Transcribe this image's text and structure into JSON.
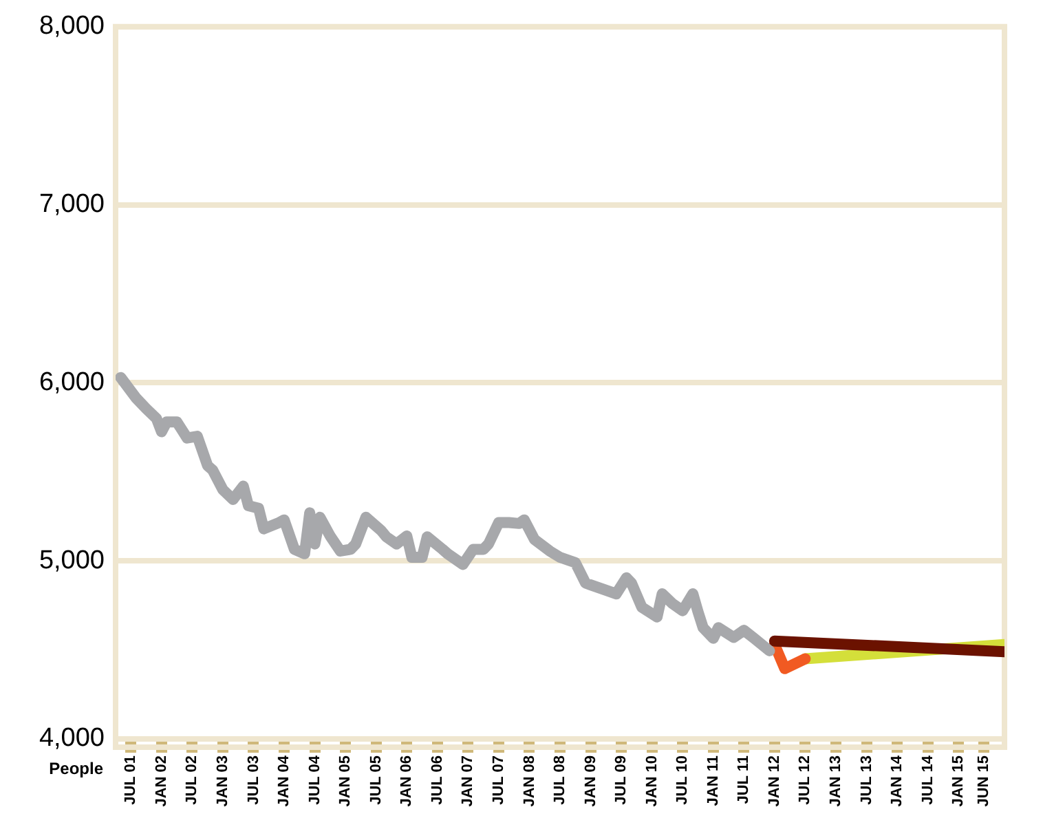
{
  "chart_data": {
    "type": "line",
    "ylabel": "People",
    "xlim": [
      "2001-04",
      "2015-10"
    ],
    "xticks": [
      {
        "value": "2001-07",
        "label": "JUL 01"
      },
      {
        "value": "2002-01",
        "label": "JAN 02"
      },
      {
        "value": "2002-07",
        "label": "JUL 02"
      },
      {
        "value": "2003-01",
        "label": "JAN 03"
      },
      {
        "value": "2003-07",
        "label": "JUL 03"
      },
      {
        "value": "2004-01",
        "label": "JAN 04"
      },
      {
        "value": "2004-07",
        "label": "JUL 04"
      },
      {
        "value": "2005-01",
        "label": "JAN 05"
      },
      {
        "value": "2005-07",
        "label": "JUL 05"
      },
      {
        "value": "2006-01",
        "label": "JAN 06"
      },
      {
        "value": "2006-07",
        "label": "JUL 06"
      },
      {
        "value": "2007-01",
        "label": "JAN 07"
      },
      {
        "value": "2007-07",
        "label": "JUL 07"
      },
      {
        "value": "2008-01",
        "label": "JAN 08"
      },
      {
        "value": "2008-07",
        "label": "JUL 08"
      },
      {
        "value": "2009-01",
        "label": "JAN 09"
      },
      {
        "value": "2009-07",
        "label": "JUL 09"
      },
      {
        "value": "2010-01",
        "label": "JAN 10"
      },
      {
        "value": "2010-07",
        "label": "JUL 10"
      },
      {
        "value": "2011-01",
        "label": "JAN 11"
      },
      {
        "value": "2011-07",
        "label": "JUL 11"
      },
      {
        "value": "2012-01",
        "label": "JAN 12"
      },
      {
        "value": "2012-07",
        "label": "JUL 12"
      },
      {
        "value": "2013-01",
        "label": "JAN 13"
      },
      {
        "value": "2013-07",
        "label": "JUL 13"
      },
      {
        "value": "2014-01",
        "label": "JAN 14"
      },
      {
        "value": "2014-07",
        "label": "JUL 14"
      },
      {
        "value": "2015-01",
        "label": "JAN 15"
      },
      {
        "value": "2015-06",
        "label": "JUN 15"
      }
    ],
    "ylim": [
      4000,
      8000
    ],
    "yticks": [
      {
        "value": 4000,
        "label": "4,000"
      },
      {
        "value": 5000,
        "label": "5,000"
      },
      {
        "value": 6000,
        "label": "6,000"
      },
      {
        "value": 7000,
        "label": "7,000"
      },
      {
        "value": 8000,
        "label": "8,000"
      }
    ],
    "grid": "y",
    "marker": "none",
    "line_style": "solid",
    "series": [
      {
        "color": "#6b1200",
        "x": [
          "2012-01",
          "2015-10"
        ],
        "values": [
          4550,
          4490
        ]
      },
      {
        "color": "#a7a8ab",
        "x": [
          "2001-05",
          "2001-08",
          "2001-10",
          "2001-12",
          "2002-01",
          "2002-02",
          "2002-04",
          "2002-06",
          "2002-08",
          "2002-10",
          "2002-11",
          "2003-01",
          "2003-03",
          "2003-05",
          "2003-06",
          "2003-08",
          "2003-09",
          "2003-12",
          "2004-01",
          "2004-03",
          "2004-05",
          "2004-06",
          "2004-07",
          "2004-08",
          "2004-10",
          "2004-12",
          "2005-02",
          "2005-03",
          "2005-05",
          "2005-08",
          "2005-09",
          "2005-11",
          "2006-01",
          "2006-02",
          "2006-04",
          "2006-05",
          "2006-08",
          "2006-09",
          "2006-12",
          "2007-02",
          "2007-04",
          "2007-05",
          "2007-07",
          "2007-09",
          "2007-11",
          "2007-12",
          "2008-02",
          "2008-05",
          "2008-07",
          "2008-10",
          "2008-12",
          "2009-01",
          "2009-04",
          "2009-06",
          "2009-08",
          "2009-09",
          "2009-11",
          "2010-02",
          "2010-03",
          "2010-05",
          "2010-07",
          "2010-09",
          "2010-10",
          "2010-11",
          "2011-01",
          "2011-02",
          "2011-05",
          "2011-07",
          "2011-09",
          "2011-12"
        ],
        "values": [
          6030,
          5915,
          5855,
          5800,
          5725,
          5780,
          5780,
          5690,
          5700,
          5535,
          5510,
          5400,
          5345,
          5420,
          5310,
          5295,
          5180,
          5215,
          5230,
          5065,
          5040,
          5270,
          5095,
          5245,
          5140,
          5055,
          5065,
          5095,
          5245,
          5170,
          5135,
          5095,
          5140,
          5020,
          5020,
          5135,
          5065,
          5040,
          4980,
          5065,
          5065,
          5095,
          5215,
          5215,
          5210,
          5230,
          5120,
          5055,
          5020,
          4990,
          4875,
          4865,
          4835,
          4815,
          4905,
          4875,
          4740,
          4685,
          4815,
          4760,
          4720,
          4815,
          4715,
          4625,
          4565,
          4625,
          4570,
          4610,
          4565,
          4495
        ]
      },
      {
        "color": "#f15a22",
        "x": [
          "2012-01",
          "2012-03",
          "2012-07"
        ],
        "values": [
          4530,
          4395,
          4450
        ]
      },
      {
        "color": "#d4df3a",
        "x": [
          "2012-07",
          "2015-10"
        ],
        "values": [
          4450,
          4530
        ]
      }
    ]
  }
}
